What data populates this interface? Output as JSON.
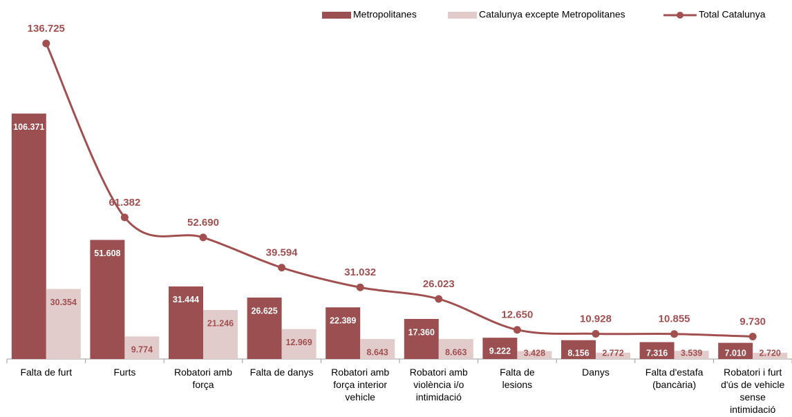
{
  "chart_data": {
    "type": "bar_line",
    "categories": [
      "Falta de furt",
      "Furts",
      "Robatori amb força",
      "Falta de danys",
      "Robatori amb força interior vehicle",
      "Robatori amb violència i/o intimidació",
      "Falta de lesions",
      "Danys",
      "Falta d'estafa (bancària)",
      "Robatori i furt d'ús de vehicle sense intimidació"
    ],
    "series": [
      {
        "name": "Metropolitanes",
        "color": "#9c4f50",
        "type": "bar",
        "values": [
          106371,
          51608,
          31444,
          26625,
          22389,
          17360,
          9222,
          8156,
          7316,
          7010
        ],
        "value_labels": [
          "106.371",
          "51.608",
          "31.444",
          "26.625",
          "22.389",
          "17.360",
          "9.222",
          "8.156",
          "7.316",
          "7.010"
        ]
      },
      {
        "name": "Catalunya excepte Metropolitanes",
        "color": "#e2cbcb",
        "type": "bar",
        "values": [
          30354,
          9774,
          21246,
          12969,
          8643,
          8663,
          3428,
          2772,
          3539,
          2720
        ],
        "value_labels": [
          "30.354",
          "9.774",
          "21.246",
          "12.969",
          "8.643",
          "8.663",
          "3.428",
          "2.772",
          "3.539",
          "2.720"
        ]
      },
      {
        "name": "Total Catalunya",
        "color": "#a24f50",
        "type": "line",
        "values": [
          136725,
          61382,
          52690,
          39594,
          31032,
          26023,
          12650,
          10928,
          10855,
          9730
        ],
        "value_labels": [
          "136.725",
          "61.382",
          "52.690",
          "39.594",
          "31.032",
          "26.023",
          "12.650",
          "10.928",
          "10.855",
          "9.730"
        ]
      }
    ]
  }
}
